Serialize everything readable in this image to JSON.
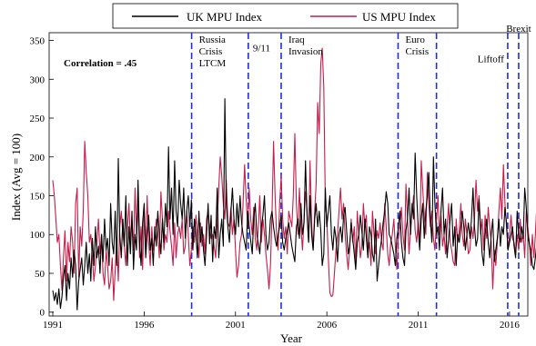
{
  "chart_data": {
    "type": "line",
    "xlabel": "Year",
    "ylabel": "Index (Avg = 100)",
    "xlim": [
      1990.8,
      2017.0
    ],
    "ylim": [
      -5,
      360
    ],
    "grid": false,
    "legend_position": "top-center",
    "x_ticks": [
      {
        "value": 1991,
        "label": "1991"
      },
      {
        "value": 1996,
        "label": "1996"
      },
      {
        "value": 2001,
        "label": "2001"
      },
      {
        "value": 2006,
        "label": "2006"
      },
      {
        "value": 2011,
        "label": "2011"
      },
      {
        "value": 2016,
        "label": "2016"
      }
    ],
    "y_ticks": [
      {
        "value": 0,
        "label": "0"
      },
      {
        "value": 50,
        "label": "50"
      },
      {
        "value": 100,
        "label": "100"
      },
      {
        "value": 150,
        "label": "150"
      },
      {
        "value": 200,
        "label": "200"
      },
      {
        "value": 250,
        "label": "250"
      },
      {
        "value": 300,
        "label": "300"
      },
      {
        "value": 350,
        "label": "350"
      }
    ],
    "annotation": "Correlation = .45",
    "events": [
      {
        "x": 1998.6,
        "lines": [
          "Russia",
          "Crisis",
          "LTCM"
        ],
        "label_y": 347
      },
      {
        "x": 2001.7,
        "lines": [
          "9/11"
        ],
        "label_y": 336
      },
      {
        "x": 2003.5,
        "lines": [
          "Iraq",
          "Invasion"
        ],
        "label_y": 347
      },
      {
        "x": 2009.9,
        "lines": [
          "Euro",
          "Crisis"
        ],
        "label_y": 347
      },
      {
        "x": 2012.0,
        "lines": [],
        "label_y": 0
      },
      {
        "x": 2015.9,
        "lines": [
          "Liftoff"
        ],
        "label_y": 322
      },
      {
        "x": 2016.5,
        "lines": [
          "Brexit"
        ],
        "label_y": 361
      }
    ],
    "series": [
      {
        "name": "UK MPU Index",
        "color": "#000000",
        "start": 1991.0,
        "step": 0.08333,
        "values": [
          28,
          15,
          25,
          10,
          30,
          5,
          20,
          45,
          60,
          15,
          50,
          30,
          70,
          45,
          80,
          60,
          3,
          40,
          55,
          70,
          35,
          60,
          90,
          50,
          75,
          40,
          95,
          60,
          110,
          70,
          85,
          50,
          100,
          65,
          120,
          80,
          95,
          60,
          140,
          90,
          75,
          130,
          60,
          198,
          100,
          70,
          120,
          85,
          150,
          60,
          110,
          75,
          130,
          55,
          100,
          80,
          170,
          90,
          60,
          115,
          140,
          70,
          100,
          125,
          80,
          95,
          60,
          110,
          85,
          130,
          100,
          75,
          120,
          90,
          140,
          110,
          213,
          120,
          160,
          100,
          195,
          130,
          110,
          170,
          140,
          120,
          160,
          95,
          130,
          150,
          110,
          145,
          80,
          120,
          100,
          70,
          130,
          90,
          110,
          80,
          60,
          100,
          140,
          88,
          125,
          65,
          110,
          95,
          160,
          70,
          100,
          120,
          85,
          275,
          140,
          110,
          90,
          130,
          160,
          120,
          100,
          140,
          110,
          150,
          115,
          100,
          90,
          80,
          130,
          110,
          92,
          75,
          120,
          140,
          100,
          88,
          75,
          110,
          125,
          150,
          100,
          80,
          90,
          120,
          130,
          110,
          95,
          85,
          100,
          110,
          125,
          90,
          80,
          95,
          105,
          115,
          100,
          85,
          75,
          65,
          110,
          120,
          95,
          140,
          100,
          115,
          195,
          125,
          90,
          150,
          100,
          80,
          120,
          140,
          110,
          130,
          105,
          60,
          75,
          160,
          110,
          130,
          150,
          100,
          80,
          110,
          95,
          65,
          100,
          110,
          90,
          125,
          135,
          105,
          75,
          85,
          115,
          95,
          75,
          55,
          90,
          100,
          125,
          105,
          80,
          120,
          95,
          70,
          110,
          100,
          75,
          65,
          120,
          40,
          60,
          80,
          95,
          115,
          130,
          155,
          140,
          100,
          95,
          85,
          75,
          60,
          95,
          110,
          130,
          90,
          70,
          60,
          105,
          120,
          160,
          100,
          140,
          120,
          205,
          150,
          110,
          80,
          120,
          140,
          95,
          130,
          150,
          180,
          120,
          90,
          200,
          140,
          100,
          110,
          80,
          130,
          160,
          100,
          120,
          70,
          95,
          120,
          140,
          85,
          110,
          60,
          100,
          90,
          110,
          130,
          110,
          80,
          100,
          115,
          95,
          120,
          160,
          110,
          85,
          95,
          145,
          110,
          75,
          60,
          100,
          120,
          90,
          70,
          100,
          120,
          65,
          80,
          95,
          120,
          85,
          110,
          100,
          135,
          115,
          80,
          90,
          100,
          110,
          85,
          70,
          130,
          100,
          90,
          110,
          95,
          160,
          135,
          100,
          88,
          80,
          60,
          55,
          70,
          90,
          100,
          120,
          130,
          110,
          90,
          150,
          110,
          80,
          70,
          60,
          75,
          90,
          130,
          100,
          85,
          70,
          120,
          95,
          160,
          140,
          110,
          215,
          170,
          110,
          150,
          120,
          190,
          140,
          175,
          245,
          200,
          100,
          80,
          245,
          160,
          60,
          70,
          110,
          155,
          170,
          180,
          190,
          100,
          90
        ]
      },
      {
        "name": "US MPU Index",
        "color": "#c41e4a",
        "start": 1991.0,
        "step": 0.08333,
        "values": [
          170,
          150,
          120,
          90,
          100,
          60,
          28,
          70,
          105,
          40,
          90,
          65,
          110,
          90,
          50,
          140,
          160,
          45,
          110,
          85,
          130,
          220,
          180,
          150,
          90,
          100,
          70,
          40,
          60,
          90,
          120,
          75,
          100,
          50,
          35,
          80,
          60,
          30,
          40,
          70,
          15,
          55,
          95,
          40,
          110,
          130,
          100,
          85,
          60,
          110,
          140,
          90,
          120,
          80,
          160,
          100,
          140,
          70,
          110,
          55,
          130,
          75,
          150,
          90,
          60,
          110,
          80,
          95,
          120,
          100,
          70,
          155,
          120,
          80,
          100,
          90,
          130,
          105,
          85,
          60,
          115,
          70,
          100,
          110,
          95,
          120,
          75,
          85,
          130,
          100,
          60,
          80,
          110,
          90,
          125,
          100,
          70,
          115,
          85,
          100,
          75,
          120,
          130,
          110,
          95,
          100,
          85,
          70,
          115,
          160,
          200,
          175,
          140,
          120,
          170,
          115,
          110,
          135,
          100,
          120,
          80,
          45,
          60,
          90,
          100,
          140,
          190,
          145,
          110,
          160,
          120,
          100,
          135,
          95,
          80,
          110,
          150,
          90,
          120,
          100,
          75,
          55,
          30,
          60,
          125,
          220,
          150,
          100,
          80,
          140,
          175,
          120,
          95,
          110,
          75,
          130,
          120,
          110,
          150,
          230,
          140,
          100,
          160,
          110,
          80,
          120,
          155,
          130,
          90,
          195,
          115,
          80,
          130,
          165,
          270,
          230,
          320,
          340,
          290,
          140,
          120,
          70,
          25,
          20,
          22,
          50,
          80,
          100,
          130,
          160,
          120,
          140,
          100,
          75,
          55,
          80,
          120,
          90,
          110,
          60,
          130,
          100,
          70,
          85,
          140,
          110,
          125,
          75,
          90,
          60,
          130,
          100,
          75,
          105,
          95,
          115,
          90,
          80,
          140,
          110,
          75,
          60,
          90,
          100,
          120,
          85,
          55,
          95,
          110,
          135,
          100,
          80,
          165,
          120,
          75,
          110,
          130,
          150,
          105,
          90,
          115,
          85,
          195,
          160,
          125,
          100,
          180,
          140,
          110,
          130,
          95,
          80,
          115,
          150,
          100,
          125,
          85,
          100,
          75,
          110,
          140,
          90,
          80,
          65,
          60,
          120,
          90,
          105,
          140,
          100,
          85,
          120,
          100,
          75,
          80,
          110,
          95,
          120,
          170,
          130,
          150,
          100,
          120,
          80,
          125,
          95,
          135,
          110,
          90,
          30,
          80,
          60,
          90,
          130,
          160,
          120,
          190,
          140,
          110,
          80,
          100,
          125,
          95,
          90,
          75,
          100,
          80,
          120,
          90,
          100,
          70,
          130,
          110,
          90,
          60,
          100,
          70,
          100,
          140,
          110,
          130,
          90,
          80,
          110,
          160,
          130,
          100,
          115,
          75,
          120,
          60,
          95,
          70,
          100,
          75,
          110,
          80,
          95,
          120,
          60,
          80,
          100,
          145,
          110,
          85,
          95,
          120,
          160,
          130,
          110,
          100,
          90,
          75,
          140,
          120,
          90,
          80,
          115,
          100,
          70,
          50,
          80,
          65,
          110,
          90,
          130,
          120,
          160,
          200,
          180,
          280,
          250,
          190,
          140,
          120,
          80,
          160,
          100,
          60,
          75,
          110,
          130,
          115,
          95,
          155,
          160,
          140,
          130,
          200,
          175,
          175,
          275,
          240,
          330
        ]
      }
    ]
  }
}
